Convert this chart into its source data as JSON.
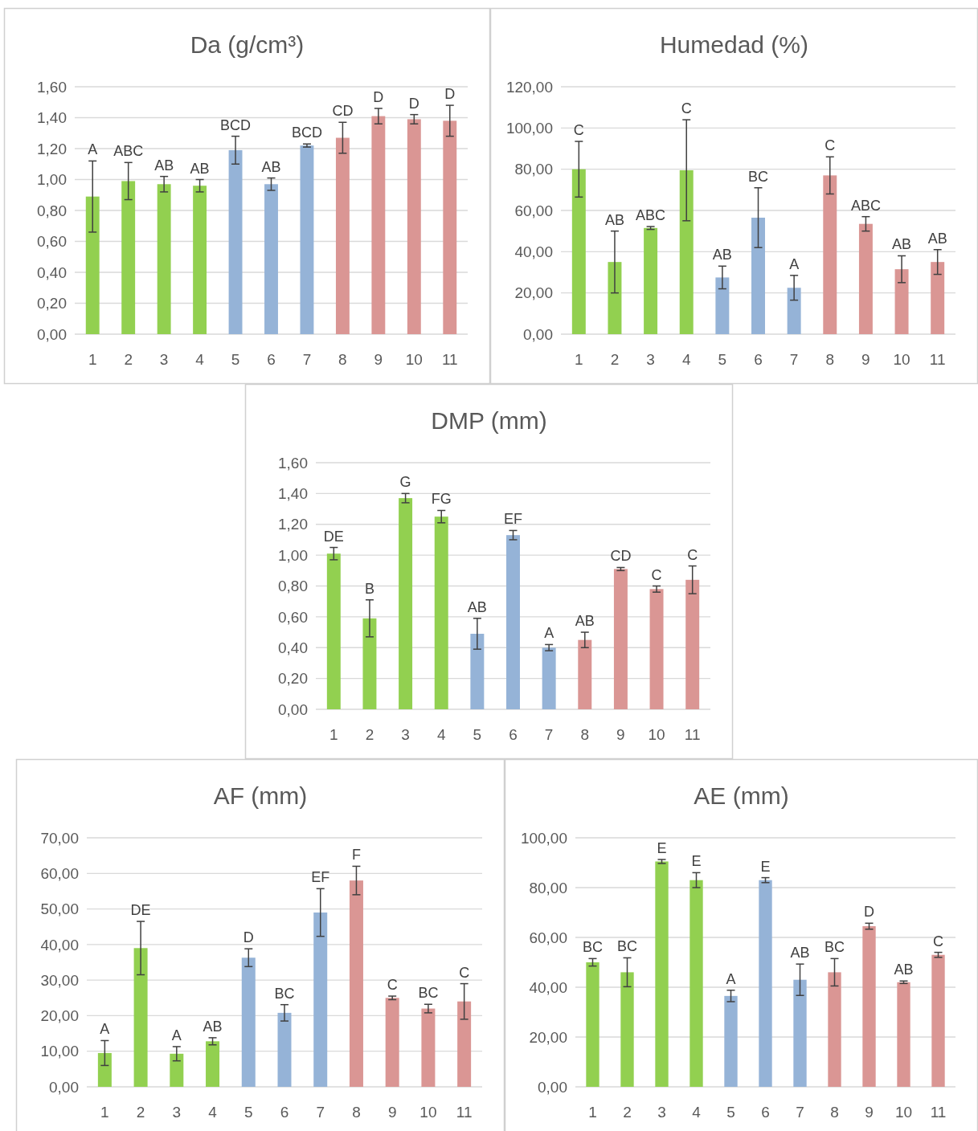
{
  "chart_data": [
    {
      "type": "bar",
      "title": "Da (g/cm³)",
      "categories": [
        "1",
        "2",
        "3",
        "4",
        "5",
        "6",
        "7",
        "8",
        "9",
        "10",
        "11"
      ],
      "values": [
        0.89,
        0.99,
        0.97,
        0.96,
        1.19,
        0.97,
        1.22,
        1.27,
        1.41,
        1.39,
        1.38
      ],
      "errors": [
        0.23,
        0.12,
        0.05,
        0.04,
        0.09,
        0.04,
        0.01,
        0.1,
        0.05,
        0.03,
        0.1
      ],
      "colors": [
        "#92d050",
        "#92d050",
        "#92d050",
        "#92d050",
        "#95b3d7",
        "#95b3d7",
        "#95b3d7",
        "#da9694",
        "#da9694",
        "#da9694",
        "#da9694"
      ],
      "ylim": [
        0,
        1.6
      ],
      "yticks": [
        {
          "value": 0,
          "label": "0,00"
        },
        {
          "value": 0.2,
          "label": "0,20"
        },
        {
          "value": 0.4,
          "label": "0,40"
        },
        {
          "value": 0.6,
          "label": "0,60"
        },
        {
          "value": 0.8,
          "label": "0,80"
        },
        {
          "value": 1,
          "label": "1,00"
        },
        {
          "value": 1.2,
          "label": "1,20"
        },
        {
          "value": 1.4,
          "label": "1,40"
        },
        {
          "value": 1.6,
          "label": "1,60"
        }
      ],
      "grid": "y",
      "annotations": [
        {
          "text": "A",
          "x": "1",
          "y": 1.12
        },
        {
          "text": "ABC",
          "x": "2",
          "y": 1.11
        },
        {
          "text": "AB",
          "x": "3",
          "y": 1.02
        },
        {
          "text": "AB",
          "x": "4",
          "y": 1
        },
        {
          "text": "BCD",
          "x": "5",
          "y": 1.28
        },
        {
          "text": "AB",
          "x": "6",
          "y": 1.01
        },
        {
          "text": "BCD",
          "x": "7",
          "y": 1.23
        },
        {
          "text": "CD",
          "x": "8",
          "y": 1.37
        },
        {
          "text": "D",
          "x": "9",
          "y": 1.46
        },
        {
          "text": "D",
          "x": "10",
          "y": 1.42
        },
        {
          "text": "D",
          "x": "11",
          "y": 1.48
        }
      ]
    },
    {
      "type": "bar",
      "title": "Humedad (%)",
      "categories": [
        "1",
        "2",
        "3",
        "4",
        "5",
        "6",
        "7",
        "8",
        "9",
        "10",
        "11"
      ],
      "values": [
        80,
        35,
        51.5,
        79.5,
        27.5,
        56.5,
        22.5,
        77,
        53.5,
        31.5,
        35
      ],
      "errors": [
        13.5,
        15,
        0.7,
        24.5,
        5.5,
        14.5,
        6,
        9,
        3.5,
        6.5,
        6
      ],
      "colors": [
        "#92d050",
        "#92d050",
        "#92d050",
        "#92d050",
        "#95b3d7",
        "#95b3d7",
        "#95b3d7",
        "#da9694",
        "#da9694",
        "#da9694",
        "#da9694"
      ],
      "ylim": [
        0,
        120
      ],
      "yticks": [
        {
          "value": 0,
          "label": "0,00"
        },
        {
          "value": 20,
          "label": "20,00"
        },
        {
          "value": 40,
          "label": "40,00"
        },
        {
          "value": 60,
          "label": "60,00"
        },
        {
          "value": 80,
          "label": "80,00"
        },
        {
          "value": 100,
          "label": "100,00"
        },
        {
          "value": 120,
          "label": "120,00"
        }
      ],
      "grid": "y",
      "annotations": [
        {
          "text": "C",
          "x": "1",
          "y": 93.5
        },
        {
          "text": "AB",
          "x": "2",
          "y": 50
        },
        {
          "text": "ABC",
          "x": "3",
          "y": 52.2
        },
        {
          "text": "C",
          "x": "4",
          "y": 104
        },
        {
          "text": "AB",
          "x": "5",
          "y": 33
        },
        {
          "text": "BC",
          "x": "6",
          "y": 71
        },
        {
          "text": "A",
          "x": "7",
          "y": 28.5
        },
        {
          "text": "C",
          "x": "8",
          "y": 86
        },
        {
          "text": "ABC",
          "x": "9",
          "y": 57
        },
        {
          "text": "AB",
          "x": "10",
          "y": 38
        },
        {
          "text": "AB",
          "x": "11",
          "y": 41
        }
      ]
    },
    {
      "type": "bar",
      "title": "DMP (mm)",
      "categories": [
        "1",
        "2",
        "3",
        "4",
        "5",
        "6",
        "7",
        "8",
        "9",
        "10",
        "11"
      ],
      "values": [
        1.01,
        0.59,
        1.37,
        1.25,
        0.49,
        1.13,
        0.4,
        0.45,
        0.91,
        0.78,
        0.84
      ],
      "errors": [
        0.04,
        0.12,
        0.03,
        0.04,
        0.1,
        0.03,
        0.02,
        0.05,
        0.01,
        0.02,
        0.09
      ],
      "colors": [
        "#92d050",
        "#92d050",
        "#92d050",
        "#92d050",
        "#95b3d7",
        "#95b3d7",
        "#95b3d7",
        "#da9694",
        "#da9694",
        "#da9694",
        "#da9694"
      ],
      "ylim": [
        0,
        1.6
      ],
      "yticks": [
        {
          "value": 0,
          "label": "0,00"
        },
        {
          "value": 0.2,
          "label": "0,20"
        },
        {
          "value": 0.4,
          "label": "0,40"
        },
        {
          "value": 0.6,
          "label": "0,60"
        },
        {
          "value": 0.8,
          "label": "0,80"
        },
        {
          "value": 1,
          "label": "1,00"
        },
        {
          "value": 1.2,
          "label": "1,20"
        },
        {
          "value": 1.4,
          "label": "1,40"
        },
        {
          "value": 1.6,
          "label": "1,60"
        }
      ],
      "grid": "y",
      "annotations": [
        {
          "text": "DE",
          "x": "1",
          "y": 1.05
        },
        {
          "text": "B",
          "x": "2",
          "y": 0.71
        },
        {
          "text": "G",
          "x": "3",
          "y": 1.4
        },
        {
          "text": "FG",
          "x": "4",
          "y": 1.29
        },
        {
          "text": "AB",
          "x": "5",
          "y": 0.59
        },
        {
          "text": "EF",
          "x": "6",
          "y": 1.16
        },
        {
          "text": "A",
          "x": "7",
          "y": 0.42
        },
        {
          "text": "AB",
          "x": "8",
          "y": 0.5
        },
        {
          "text": "CD",
          "x": "9",
          "y": 0.92
        },
        {
          "text": "C",
          "x": "10",
          "y": 0.8
        },
        {
          "text": "C",
          "x": "11",
          "y": 0.93
        }
      ]
    },
    {
      "type": "bar",
      "title": "AF (mm)",
      "categories": [
        "1",
        "2",
        "3",
        "4",
        "5",
        "6",
        "7",
        "8",
        "9",
        "10",
        "11"
      ],
      "values": [
        9.5,
        39,
        9.3,
        12.8,
        36.3,
        20.8,
        49,
        58,
        25,
        22,
        24
      ],
      "errors": [
        3.5,
        7.5,
        2,
        1,
        2.5,
        2.3,
        6.7,
        4,
        0.5,
        1.2,
        5
      ],
      "colors": [
        "#92d050",
        "#92d050",
        "#92d050",
        "#92d050",
        "#95b3d7",
        "#95b3d7",
        "#95b3d7",
        "#da9694",
        "#da9694",
        "#da9694",
        "#da9694"
      ],
      "ylim": [
        0,
        70
      ],
      "yticks": [
        {
          "value": 0,
          "label": "0,00"
        },
        {
          "value": 10,
          "label": "10,00"
        },
        {
          "value": 20,
          "label": "20,00"
        },
        {
          "value": 30,
          "label": "30,00"
        },
        {
          "value": 40,
          "label": "40,00"
        },
        {
          "value": 50,
          "label": "50,00"
        },
        {
          "value": 60,
          "label": "60,00"
        },
        {
          "value": 70,
          "label": "70,00"
        }
      ],
      "grid": "y",
      "annotations": [
        {
          "text": "A",
          "x": "1",
          "y": 13
        },
        {
          "text": "DE",
          "x": "2",
          "y": 46.5
        },
        {
          "text": "A",
          "x": "3",
          "y": 11.3
        },
        {
          "text": "AB",
          "x": "4",
          "y": 13.8
        },
        {
          "text": "D",
          "x": "5",
          "y": 38.8
        },
        {
          "text": "BC",
          "x": "6",
          "y": 23.1
        },
        {
          "text": "EF",
          "x": "7",
          "y": 55.7
        },
        {
          "text": "F",
          "x": "8",
          "y": 62
        },
        {
          "text": "C",
          "x": "9",
          "y": 25.5
        },
        {
          "text": "BC",
          "x": "10",
          "y": 23.2
        },
        {
          "text": "C",
          "x": "11",
          "y": 29
        }
      ]
    },
    {
      "type": "bar",
      "title": "AE (mm)",
      "categories": [
        "1",
        "2",
        "3",
        "4",
        "5",
        "6",
        "7",
        "8",
        "9",
        "10",
        "11"
      ],
      "values": [
        50,
        46,
        90.5,
        83,
        36.5,
        83,
        43,
        46,
        64.5,
        42,
        53
      ],
      "errors": [
        1.5,
        5.8,
        0.8,
        3,
        2.3,
        1,
        6.3,
        5.5,
        1.2,
        0.5,
        1
      ],
      "colors": [
        "#92d050",
        "#92d050",
        "#92d050",
        "#92d050",
        "#95b3d7",
        "#95b3d7",
        "#95b3d7",
        "#da9694",
        "#da9694",
        "#da9694",
        "#da9694"
      ],
      "ylim": [
        0,
        100
      ],
      "yticks": [
        {
          "value": 0,
          "label": "0,00"
        },
        {
          "value": 20,
          "label": "20,00"
        },
        {
          "value": 40,
          "label": "40,00"
        },
        {
          "value": 60,
          "label": "60,00"
        },
        {
          "value": 80,
          "label": "80,00"
        },
        {
          "value": 100,
          "label": "100,00"
        }
      ],
      "grid": "y",
      "annotations": [
        {
          "text": "BC",
          "x": "1",
          "y": 51.5
        },
        {
          "text": "BC",
          "x": "2",
          "y": 51.8
        },
        {
          "text": "E",
          "x": "3",
          "y": 91.3
        },
        {
          "text": "E",
          "x": "4",
          "y": 86
        },
        {
          "text": "A",
          "x": "5",
          "y": 38.8
        },
        {
          "text": "E",
          "x": "6",
          "y": 84
        },
        {
          "text": "AB",
          "x": "7",
          "y": 49.3
        },
        {
          "text": "BC",
          "x": "8",
          "y": 51.5
        },
        {
          "text": "D",
          "x": "9",
          "y": 65.7
        },
        {
          "text": "AB",
          "x": "10",
          "y": 42.5
        },
        {
          "text": "C",
          "x": "11",
          "y": 54
        }
      ]
    }
  ]
}
